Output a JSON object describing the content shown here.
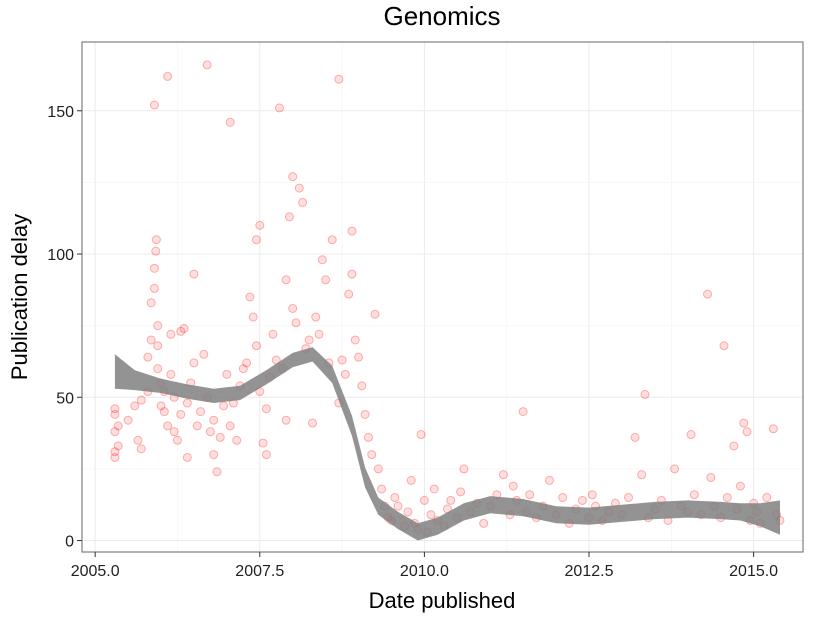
{
  "chart_data": {
    "type": "scatter",
    "title": "Genomics",
    "xlabel": "Date published",
    "ylabel": "Publication delay",
    "xlim": [
      2004.8,
      2015.75
    ],
    "ylim": [
      -4,
      174
    ],
    "x_ticks": [
      2005.0,
      2007.5,
      2010.0,
      2012.5,
      2015.0
    ],
    "x_tick_labels": [
      "2005.0",
      "2007.5",
      "2010.0",
      "2012.5",
      "2015.0"
    ],
    "y_ticks": [
      0,
      50,
      100,
      150
    ],
    "y_tick_labels": [
      "0",
      "50",
      "100",
      "150"
    ],
    "grid": true,
    "legend": "none",
    "point_color": "#ff0000",
    "smooth_color": "#808080",
    "points": [
      [
        2005.3,
        29
      ],
      [
        2005.3,
        31
      ],
      [
        2005.3,
        38
      ],
      [
        2005.3,
        44
      ],
      [
        2005.3,
        46
      ],
      [
        2005.35,
        33
      ],
      [
        2005.35,
        40
      ],
      [
        2005.5,
        42
      ],
      [
        2005.6,
        47
      ],
      [
        2005.65,
        35
      ],
      [
        2005.7,
        32
      ],
      [
        2005.7,
        49
      ],
      [
        2005.8,
        52
      ],
      [
        2005.8,
        64
      ],
      [
        2005.85,
        70
      ],
      [
        2005.85,
        83
      ],
      [
        2005.9,
        88
      ],
      [
        2005.9,
        95
      ],
      [
        2005.92,
        101
      ],
      [
        2005.93,
        105
      ],
      [
        2005.9,
        152
      ],
      [
        2005.95,
        75
      ],
      [
        2005.95,
        68
      ],
      [
        2005.95,
        60
      ],
      [
        2006.0,
        55
      ],
      [
        2006.0,
        47
      ],
      [
        2006.05,
        52
      ],
      [
        2006.05,
        45
      ],
      [
        2006.1,
        40
      ],
      [
        2006.1,
        162
      ],
      [
        2006.15,
        72
      ],
      [
        2006.15,
        58
      ],
      [
        2006.2,
        38
      ],
      [
        2006.2,
        50
      ],
      [
        2006.25,
        35
      ],
      [
        2006.3,
        44
      ],
      [
        2006.3,
        73
      ],
      [
        2006.35,
        74
      ],
      [
        2006.4,
        29
      ],
      [
        2006.4,
        48
      ],
      [
        2006.45,
        55
      ],
      [
        2006.5,
        93
      ],
      [
        2006.5,
        62
      ],
      [
        2006.55,
        40
      ],
      [
        2006.6,
        45
      ],
      [
        2006.65,
        65
      ],
      [
        2006.7,
        166
      ],
      [
        2006.7,
        50
      ],
      [
        2006.75,
        38
      ],
      [
        2006.8,
        42
      ],
      [
        2006.8,
        30
      ],
      [
        2006.85,
        24
      ],
      [
        2006.9,
        36
      ],
      [
        2006.95,
        47
      ],
      [
        2007.0,
        58
      ],
      [
        2007.05,
        146
      ],
      [
        2007.05,
        40
      ],
      [
        2007.1,
        48
      ],
      [
        2007.15,
        35
      ],
      [
        2007.2,
        54
      ],
      [
        2007.25,
        60
      ],
      [
        2007.3,
        62
      ],
      [
        2007.35,
        85
      ],
      [
        2007.4,
        78
      ],
      [
        2007.45,
        68
      ],
      [
        2007.45,
        105
      ],
      [
        2007.5,
        110
      ],
      [
        2007.5,
        52
      ],
      [
        2007.55,
        34
      ],
      [
        2007.6,
        30
      ],
      [
        2007.6,
        46
      ],
      [
        2007.65,
        57
      ],
      [
        2007.7,
        72
      ],
      [
        2007.75,
        63
      ],
      [
        2007.8,
        151
      ],
      [
        2007.85,
        60
      ],
      [
        2007.9,
        91
      ],
      [
        2007.9,
        42
      ],
      [
        2007.95,
        113
      ],
      [
        2008.0,
        127
      ],
      [
        2008.0,
        81
      ],
      [
        2008.05,
        76
      ],
      [
        2008.1,
        123
      ],
      [
        2008.15,
        118
      ],
      [
        2008.2,
        67
      ],
      [
        2008.25,
        70
      ],
      [
        2008.3,
        41
      ],
      [
        2008.35,
        78
      ],
      [
        2008.4,
        72
      ],
      [
        2008.45,
        98
      ],
      [
        2008.5,
        91
      ],
      [
        2008.55,
        62
      ],
      [
        2008.6,
        105
      ],
      [
        2008.7,
        161
      ],
      [
        2008.7,
        48
      ],
      [
        2008.75,
        63
      ],
      [
        2008.8,
        58
      ],
      [
        2008.85,
        86
      ],
      [
        2008.9,
        108
      ],
      [
        2008.9,
        93
      ],
      [
        2008.95,
        70
      ],
      [
        2009.0,
        64
      ],
      [
        2009.05,
        54
      ],
      [
        2009.1,
        44
      ],
      [
        2009.15,
        36
      ],
      [
        2009.2,
        30
      ],
      [
        2009.25,
        79
      ],
      [
        2009.3,
        25
      ],
      [
        2009.35,
        18
      ],
      [
        2009.4,
        12
      ],
      [
        2009.45,
        8
      ],
      [
        2009.5,
        7
      ],
      [
        2009.55,
        15
      ],
      [
        2009.6,
        12
      ],
      [
        2009.7,
        5
      ],
      [
        2009.75,
        10
      ],
      [
        2009.8,
        21
      ],
      [
        2009.85,
        6
      ],
      [
        2009.9,
        4
      ],
      [
        2009.95,
        37
      ],
      [
        2010.0,
        14
      ],
      [
        2010.05,
        3
      ],
      [
        2010.1,
        9
      ],
      [
        2010.15,
        18
      ],
      [
        2010.2,
        7
      ],
      [
        2010.3,
        5
      ],
      [
        2010.35,
        11
      ],
      [
        2010.4,
        14
      ],
      [
        2010.5,
        8
      ],
      [
        2010.55,
        17
      ],
      [
        2010.6,
        25
      ],
      [
        2010.7,
        10
      ],
      [
        2010.8,
        13
      ],
      [
        2010.9,
        6
      ],
      [
        2011.0,
        12
      ],
      [
        2011.1,
        16
      ],
      [
        2011.2,
        23
      ],
      [
        2011.3,
        9
      ],
      [
        2011.35,
        19
      ],
      [
        2011.4,
        14
      ],
      [
        2011.5,
        45
      ],
      [
        2011.55,
        10
      ],
      [
        2011.6,
        16
      ],
      [
        2011.7,
        8
      ],
      [
        2011.8,
        12
      ],
      [
        2011.9,
        21
      ],
      [
        2012.0,
        9
      ],
      [
        2012.1,
        15
      ],
      [
        2012.2,
        6
      ],
      [
        2012.3,
        11
      ],
      [
        2012.4,
        14
      ],
      [
        2012.5,
        8
      ],
      [
        2012.55,
        16
      ],
      [
        2012.6,
        12
      ],
      [
        2012.7,
        7
      ],
      [
        2012.8,
        10
      ],
      [
        2012.9,
        13
      ],
      [
        2013.0,
        9
      ],
      [
        2013.1,
        15
      ],
      [
        2013.2,
        36
      ],
      [
        2013.3,
        23
      ],
      [
        2013.35,
        51
      ],
      [
        2013.4,
        8
      ],
      [
        2013.5,
        11
      ],
      [
        2013.6,
        14
      ],
      [
        2013.7,
        7
      ],
      [
        2013.8,
        25
      ],
      [
        2013.9,
        12
      ],
      [
        2014.0,
        10
      ],
      [
        2014.05,
        37
      ],
      [
        2014.1,
        16
      ],
      [
        2014.2,
        9
      ],
      [
        2014.3,
        86
      ],
      [
        2014.35,
        22
      ],
      [
        2014.4,
        12
      ],
      [
        2014.5,
        8
      ],
      [
        2014.55,
        68
      ],
      [
        2014.6,
        15
      ],
      [
        2014.7,
        33
      ],
      [
        2014.75,
        11
      ],
      [
        2014.8,
        19
      ],
      [
        2014.85,
        41
      ],
      [
        2014.9,
        38
      ],
      [
        2014.95,
        7
      ],
      [
        2015.0,
        13
      ],
      [
        2015.05,
        10
      ],
      [
        2015.1,
        6
      ],
      [
        2015.2,
        15
      ],
      [
        2015.3,
        39
      ],
      [
        2015.35,
        9
      ],
      [
        2015.4,
        7
      ]
    ],
    "smooth_curve": [
      [
        2005.3,
        59
      ],
      [
        2005.6,
        56
      ],
      [
        2006.0,
        54
      ],
      [
        2006.4,
        52
      ],
      [
        2006.8,
        50.5
      ],
      [
        2007.2,
        51.5
      ],
      [
        2007.6,
        57
      ],
      [
        2008.0,
        63
      ],
      [
        2008.3,
        65
      ],
      [
        2008.6,
        58
      ],
      [
        2008.9,
        40
      ],
      [
        2009.1,
        22
      ],
      [
        2009.3,
        12
      ],
      [
        2009.6,
        7
      ],
      [
        2009.9,
        3
      ],
      [
        2010.2,
        5
      ],
      [
        2010.6,
        10
      ],
      [
        2011.0,
        12.5
      ],
      [
        2011.5,
        11.5
      ],
      [
        2012.0,
        9
      ],
      [
        2012.5,
        8.5
      ],
      [
        2013.0,
        9.5
      ],
      [
        2013.5,
        10.5
      ],
      [
        2014.0,
        11
      ],
      [
        2014.5,
        10.5
      ],
      [
        2014.8,
        10
      ],
      [
        2015.1,
        9
      ],
      [
        2015.4,
        8
      ]
    ],
    "band_halfwidth": [
      6,
      3.5,
      2.5,
      2.5,
      2.5,
      2.5,
      2.5,
      2.5,
      2.5,
      3,
      3.5,
      3.5,
      3,
      3,
      3,
      3,
      3,
      3,
      3,
      3,
      3,
      3,
      3,
      3,
      3,
      3,
      4,
      6
    ]
  }
}
